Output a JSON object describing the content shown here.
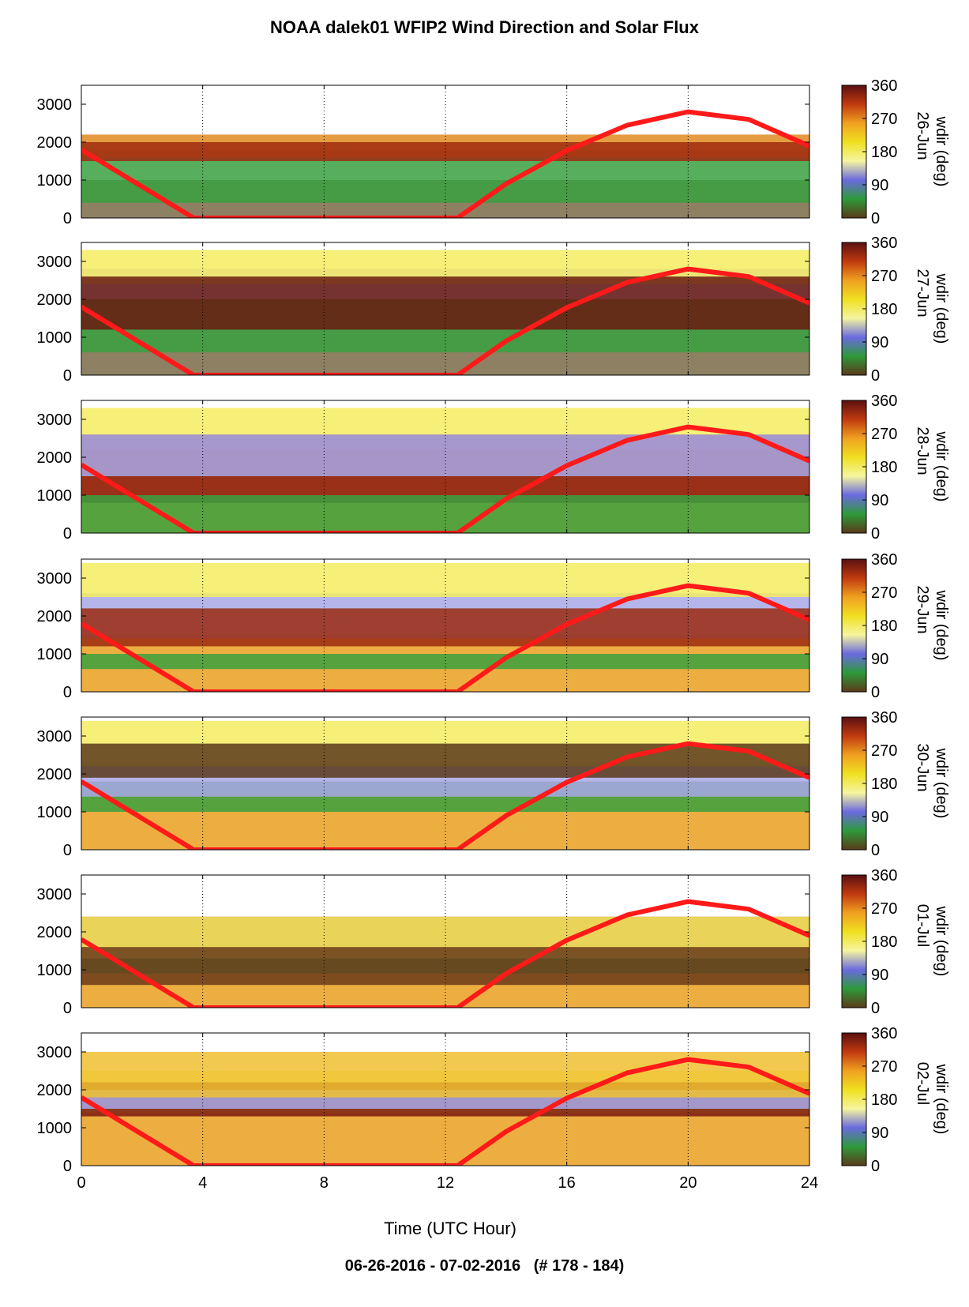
{
  "title": "NOAA dalek01 WFIP2 Wind Direction and Solar Flux",
  "footer": "06-26-2016 - 07-02-2016   (# 178 - 184)",
  "chart_data": {
    "type": "heatmap",
    "xlabel": "Time (UTC Hour)",
    "xlim": [
      0,
      24
    ],
    "xticks": [
      "0",
      "4",
      "8",
      "12",
      "16",
      "20",
      "24"
    ],
    "ylim": [
      0,
      3500
    ],
    "yticks": [
      "0",
      "1000",
      "2000",
      "3000"
    ],
    "colorbar": {
      "label": "wdir (deg)",
      "ticks": [
        "0",
        "90",
        "180",
        "270",
        "360"
      ],
      "colors": [
        "#5a3a1a",
        "#2e9a3a",
        "#6a6ae0",
        "#f5f5a0",
        "#f0e020",
        "#f0a020",
        "#c03a10",
        "#5a1010"
      ]
    },
    "solar_flux_curve": {
      "color": "#ff1a1a",
      "x": [
        0,
        3.7,
        12.4,
        14,
        16,
        18,
        20,
        22,
        24
      ],
      "y": [
        1800,
        0,
        0,
        900,
        1780,
        2450,
        2800,
        2600,
        1900
      ]
    },
    "panels": [
      {
        "date": "26-Jun",
        "layers": [
          {
            "color": "#7a6a48",
            "y0": 0,
            "y1": 1000
          },
          {
            "color": "#3aa040",
            "y0": 400,
            "y1": 1800
          },
          {
            "color": "#e08a20",
            "y0": 1600,
            "y1": 2200
          },
          {
            "color": "#a02a10",
            "y0": 1500,
            "y1": 2000
          }
        ]
      },
      {
        "date": "27-Jun",
        "layers": [
          {
            "color": "#7a6a48",
            "y0": 0,
            "y1": 2000
          },
          {
            "color": "#3aa040",
            "y0": 600,
            "y1": 2000
          },
          {
            "color": "#b0b0e8",
            "y0": 2000,
            "y1": 2800
          },
          {
            "color": "#f5ec60",
            "y0": 2400,
            "y1": 3300
          },
          {
            "color": "#6a1a10",
            "y0": 1200,
            "y1": 2600
          }
        ]
      },
      {
        "date": "28-Jun",
        "layers": [
          {
            "color": "#eaa020",
            "y0": 0,
            "y1": 2200
          },
          {
            "color": "#8a1a10",
            "y0": 800,
            "y1": 2600
          },
          {
            "color": "#a8a8e8",
            "y0": 1500,
            "y1": 2600
          },
          {
            "color": "#f5ec60",
            "y0": 2600,
            "y1": 3300
          },
          {
            "color": "#3aa040",
            "y0": 0,
            "y1": 1000
          }
        ]
      },
      {
        "date": "29-Jun",
        "layers": [
          {
            "color": "#eaa020",
            "y0": 0,
            "y1": 1500
          },
          {
            "color": "#a8a8e8",
            "y0": 1400,
            "y1": 2600
          },
          {
            "color": "#f5ec60",
            "y0": 2500,
            "y1": 3400
          },
          {
            "color": "#9a2a10",
            "y0": 1200,
            "y1": 2200
          },
          {
            "color": "#3aa040",
            "y0": 600,
            "y1": 1000
          }
        ]
      },
      {
        "date": "30-Jun",
        "layers": [
          {
            "color": "#eaa020",
            "y0": 0,
            "y1": 1800
          },
          {
            "color": "#3aa040",
            "y0": 1000,
            "y1": 1800
          },
          {
            "color": "#a8a8e8",
            "y0": 1400,
            "y1": 2300
          },
          {
            "color": "#f5ec60",
            "y0": 2200,
            "y1": 3400
          },
          {
            "color": "#5a3a1a",
            "y0": 1900,
            "y1": 2800
          }
        ]
      },
      {
        "date": "01-Jul",
        "layers": [
          {
            "color": "#eaa020",
            "y0": 0,
            "y1": 1300
          },
          {
            "color": "#9a2a10",
            "y0": 1400,
            "y1": 2400
          },
          {
            "color": "#3aa040",
            "y0": 900,
            "y1": 1500
          },
          {
            "color": "#f5ec60",
            "y0": 1300,
            "y1": 2400
          },
          {
            "color": "#6a3a1a",
            "y0": 600,
            "y1": 1600
          }
        ]
      },
      {
        "date": "02-Jul",
        "layers": [
          {
            "color": "#eaa020",
            "y0": 0,
            "y1": 1500
          },
          {
            "color": "#f5ec60",
            "y0": 1400,
            "y1": 2500
          },
          {
            "color": "#7a1a10",
            "y0": 1300,
            "y1": 2200
          },
          {
            "color": "#a8a8e8",
            "y0": 1500,
            "y1": 2000
          },
          {
            "color": "#f0c030",
            "y0": 1800,
            "y1": 3000
          }
        ]
      }
    ]
  }
}
